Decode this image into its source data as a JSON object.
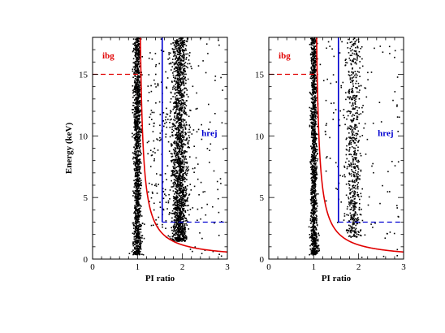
{
  "chart_data": [
    {
      "type": "scatter",
      "panel": "left",
      "xlabel": "PI ratio",
      "ylabel": "Energy (keV)",
      "xlim": [
        0,
        3
      ],
      "ylim": [
        0,
        18
      ],
      "xticks": [
        0,
        1,
        2,
        3
      ],
      "yticks": [
        0,
        5,
        10,
        15
      ],
      "annotations": [
        {
          "text": "ibg",
          "x": 0.35,
          "y": 16.3,
          "color": "#e00000"
        },
        {
          "text": "hrej",
          "x": 2.6,
          "y": 10.0,
          "color": "#0000d0"
        }
      ],
      "point_clusters": [
        {
          "x_center": 0.98,
          "x_width": 0.07,
          "y_min": 0.4,
          "y_max": 18,
          "count": 1400
        },
        {
          "x_center": 1.92,
          "x_width": 0.16,
          "y_min": 1.5,
          "y_max": 18,
          "count": 1800
        },
        {
          "x_center": 1.45,
          "x_width": 0.25,
          "y_min": 2.5,
          "y_max": 18,
          "count": 130
        },
        {
          "x_center": 2.45,
          "x_width": 0.45,
          "y_min": 0,
          "y_max": 18,
          "count": 90
        }
      ],
      "boundary_curve": {
        "formula": "y = a / (x - b)",
        "a": 1.15,
        "b": 1.0,
        "color": "#e00000"
      },
      "ibg_threshold": {
        "y": 15,
        "x_max": 1.1,
        "color": "#e00000",
        "dashed": true
      },
      "hrej_vertical": {
        "x": 1.55,
        "y_min": 3,
        "y_max": 18,
        "color": "#0000d0"
      },
      "hrej_threshold": {
        "y": 3,
        "x_min": 1.55,
        "x_max": 3,
        "color": "#0000d0",
        "dashed": true
      }
    },
    {
      "type": "scatter",
      "panel": "right",
      "xlabel": "PI ratio",
      "ylabel": "",
      "xlim": [
        0,
        3
      ],
      "ylim": [
        0,
        18
      ],
      "xticks": [
        0,
        1,
        2,
        3
      ],
      "yticks": [
        0,
        5,
        10,
        15
      ],
      "annotations": [
        {
          "text": "ibg",
          "x": 0.35,
          "y": 16.3,
          "color": "#e00000"
        },
        {
          "text": "hrej",
          "x": 2.6,
          "y": 10.0,
          "color": "#0000d0"
        }
      ],
      "point_clusters": [
        {
          "x_center": 0.99,
          "x_width": 0.06,
          "y_min": 0.4,
          "y_max": 18,
          "count": 1300
        },
        {
          "x_center": 1.88,
          "x_width": 0.15,
          "y_min": 1.8,
          "y_max": 18,
          "count": 600
        },
        {
          "x_center": 1.45,
          "x_width": 0.25,
          "y_min": 2.5,
          "y_max": 18,
          "count": 50
        },
        {
          "x_center": 2.45,
          "x_width": 0.45,
          "y_min": 0,
          "y_max": 18,
          "count": 60
        }
      ],
      "boundary_curve": {
        "formula": "y = a / (x - b)",
        "a": 1.15,
        "b": 1.0,
        "color": "#e00000"
      },
      "ibg_threshold": {
        "y": 15,
        "x_max": 1.1,
        "color": "#e00000",
        "dashed": true
      },
      "hrej_vertical": {
        "x": 1.55,
        "y_min": 3,
        "y_max": 18,
        "color": "#0000d0"
      },
      "hrej_threshold": {
        "y": 3,
        "x_min": 1.55,
        "x_max": 3,
        "color": "#0000d0",
        "dashed": true
      }
    }
  ]
}
